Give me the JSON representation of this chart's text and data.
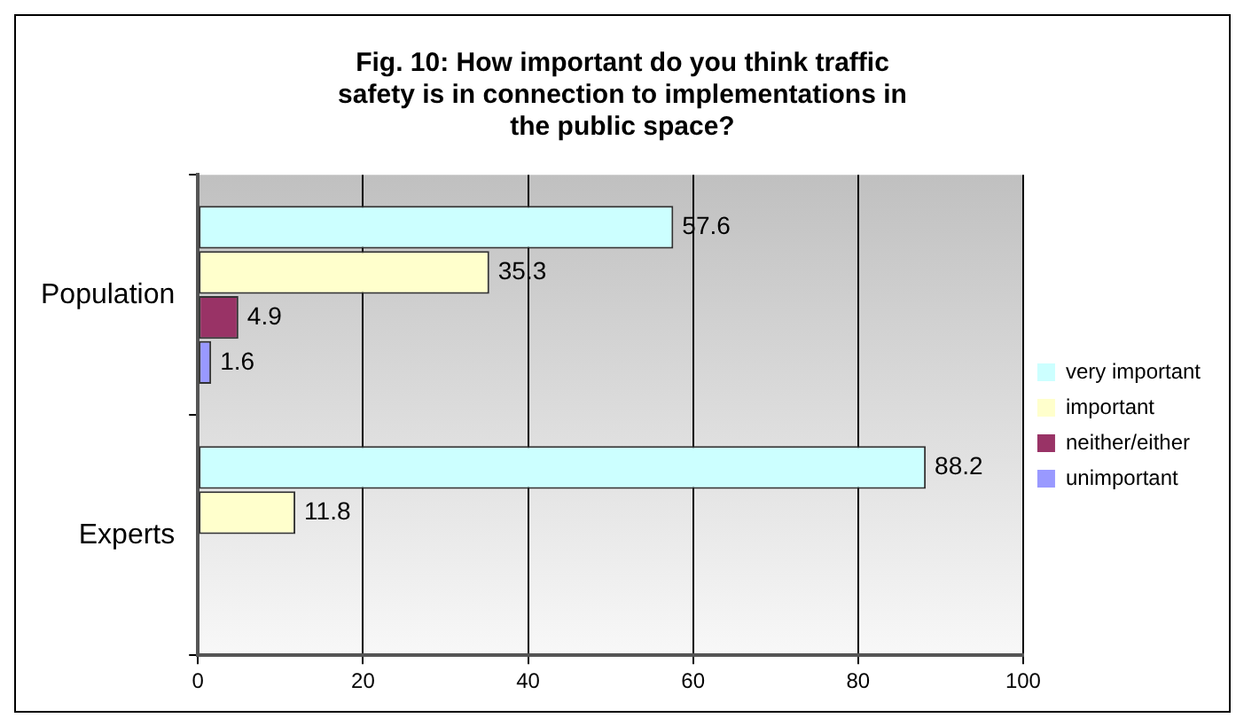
{
  "chart_data": {
    "type": "bar",
    "orientation": "horizontal",
    "title": "Fig. 10: How important do you think traffic safety is in connection to implementations in the public space?",
    "categories": [
      "Population",
      "Experts"
    ],
    "series": [
      {
        "name": "very important",
        "color": "#ccffff",
        "values": [
          57.6,
          88.2
        ]
      },
      {
        "name": "important",
        "color": "#ffffcc",
        "values": [
          35.3,
          11.8
        ]
      },
      {
        "name": "neither/either",
        "color": "#993366",
        "values": [
          4.9,
          null
        ]
      },
      {
        "name": "unimportant",
        "color": "#9999ff",
        "values": [
          1.6,
          null
        ]
      }
    ],
    "xlim": [
      0,
      100
    ],
    "xticks": [
      0,
      20,
      40,
      60,
      80,
      100
    ],
    "grid": "x",
    "legend": "right",
    "data_labels": true
  }
}
